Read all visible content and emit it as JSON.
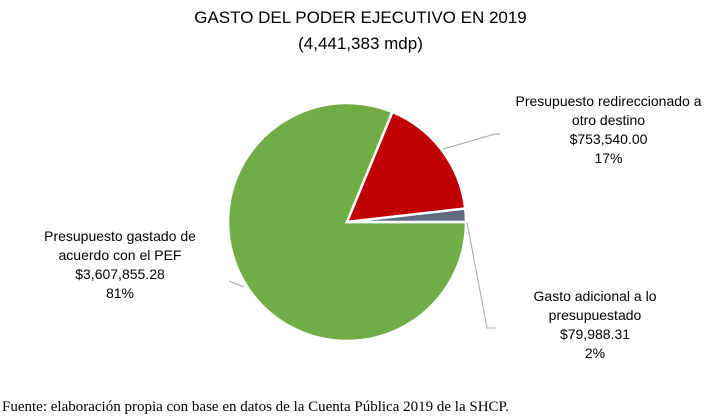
{
  "chart_data": {
    "type": "pie",
    "title": "GASTO DEL PODER EJECUTIVO EN 2019",
    "subtitle": "(4,441,383 mdp)",
    "slices": [
      {
        "label_lines": [
          "Presupuesto gastado de",
          "acuerdo con el PEF"
        ],
        "value_text": "$3,607,855.28",
        "value": 3607855.28,
        "percent_text": "81%",
        "color": "#70ad47"
      },
      {
        "label_lines": [
          "Presupuesto redireccionado a",
          "otro destino"
        ],
        "value_text": "$753,540.00",
        "value": 753540.0,
        "percent_text": "17%",
        "color": "#c00000"
      },
      {
        "label_lines": [
          "Gasto adicional a lo",
          "presupuestado"
        ],
        "value_text": "$79,988.31",
        "value": 79988.31,
        "percent_text": "2%",
        "color": "#5f6b80"
      }
    ],
    "start_angle": "3 o'clock, clockwise",
    "legend": "none"
  },
  "source": "Fuente: elaboración propia con base en datos de la Cuenta Pública 2019 de la SHCP."
}
